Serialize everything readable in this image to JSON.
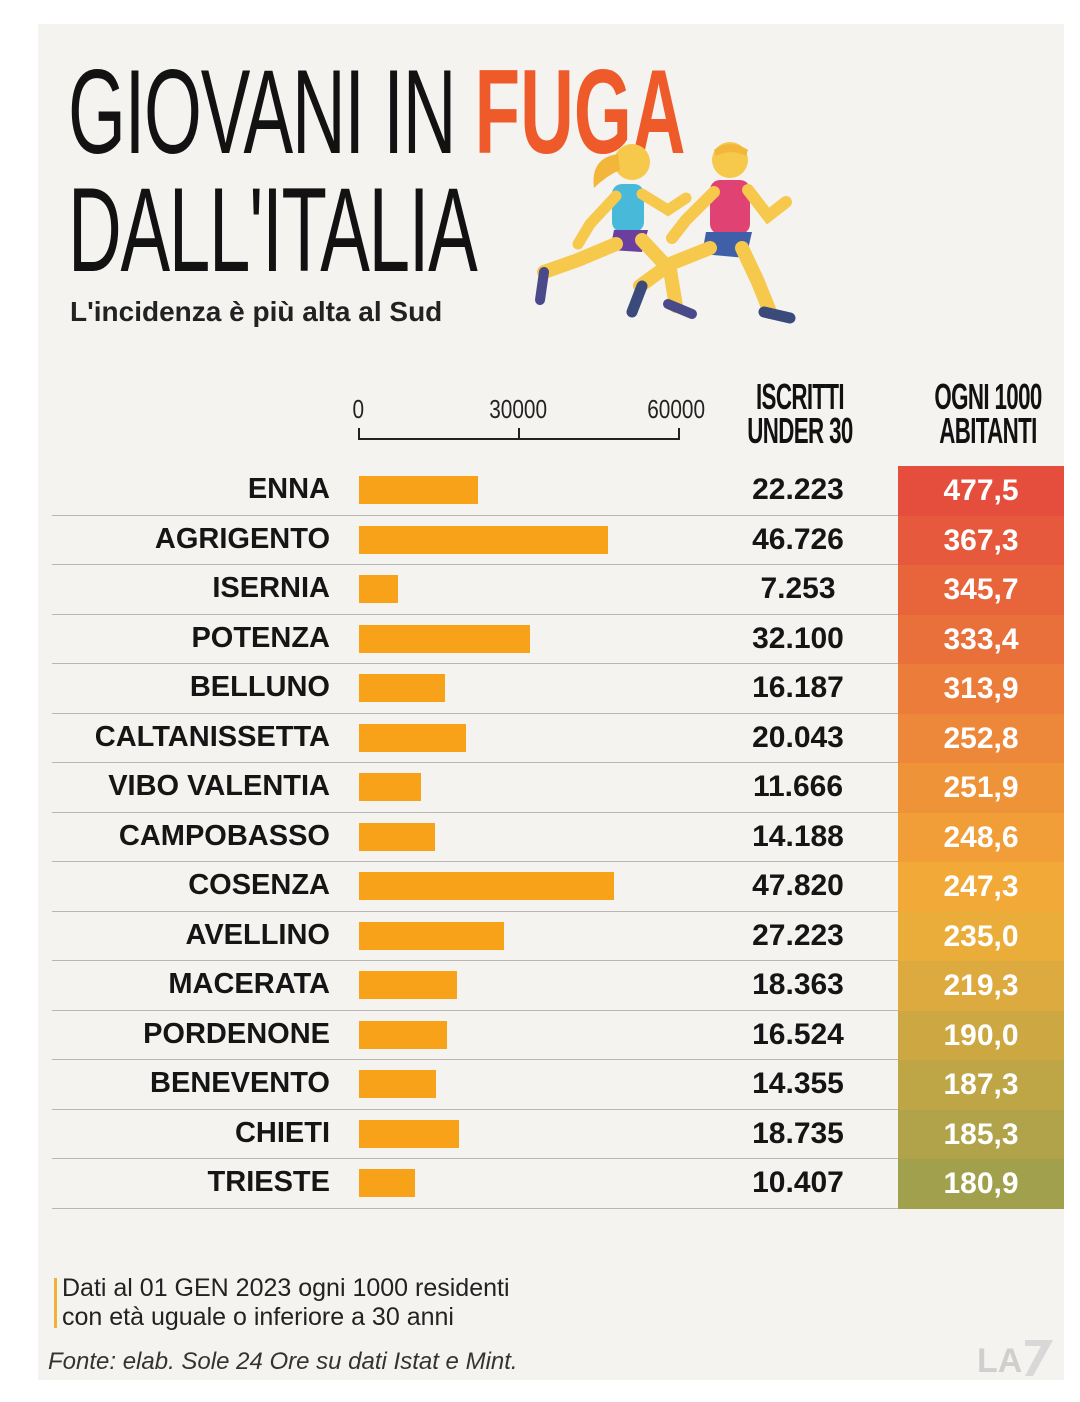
{
  "header": {
    "title_part1": "GIOVANI IN ",
    "title_accent": "FUGA",
    "title_line2": "DALL'ITALIA",
    "subtitle": "L'incidenza è più alta al Sud"
  },
  "columns": {
    "count_line1": "ISCRITTI",
    "count_line2": "UNDER 30",
    "rate_line1": "OGNI 1000",
    "rate_line2": "ABITANTI"
  },
  "colors": {
    "title_accent": "#ee5a2a",
    "bar": "#f8a21a",
    "rate_high": "#e54e3c",
    "rate_mid": "#f3ae38",
    "rate_low": "#a1a04d"
  },
  "chart_data": {
    "type": "bar",
    "orientation": "horizontal",
    "axis_ticks": [
      "0",
      "30000",
      "60000"
    ],
    "xlim": [
      0,
      60000
    ],
    "categories": [
      "ENNA",
      "AGRIGENTO",
      "ISERNIA",
      "POTENZA",
      "BELLUNO",
      "CALTANISSETTA",
      "VIBO VALENTIA",
      "CAMPOBASSO",
      "COSENZA",
      "AVELLINO",
      "MACERATA",
      "PORDENONE",
      "BENEVENTO",
      "CHIETI",
      "TRIESTE"
    ],
    "values": [
      22223,
      46726,
      7253,
      32100,
      16187,
      20043,
      11666,
      14188,
      47820,
      27223,
      18363,
      16524,
      14355,
      18735,
      10407
    ],
    "count_labels": [
      "22.223",
      "46.726",
      "7.253",
      "32.100",
      "16.187",
      "20.043",
      "11.666",
      "14.188",
      "47.820",
      "27.223",
      "18.363",
      "16.524",
      "14.355",
      "18.735",
      "10.407"
    ],
    "rates": [
      477.5,
      367.3,
      345.7,
      333.4,
      313.9,
      252.8,
      251.9,
      248.6,
      247.3,
      235.0,
      219.3,
      190.0,
      187.3,
      185.3,
      180.9
    ],
    "rate_labels": [
      "477,5",
      "367,3",
      "345,7",
      "333,4",
      "313,9",
      "252,8",
      "251,9",
      "248,6",
      "247,3",
      "235,0",
      "219,3",
      "190,0",
      "187,3",
      "185,3",
      "180,9"
    ]
  },
  "footer": {
    "note_line1": "Dati al 01 GEN 2023 ogni 1000 residenti",
    "note_line2": "con età uguale o inferiore a 30 anni",
    "source": "Fonte: elab. Sole 24 Ore su dati Istat e Mint."
  },
  "icons": {
    "runners": "running-people-icon",
    "logo": "la7-logo-icon"
  }
}
